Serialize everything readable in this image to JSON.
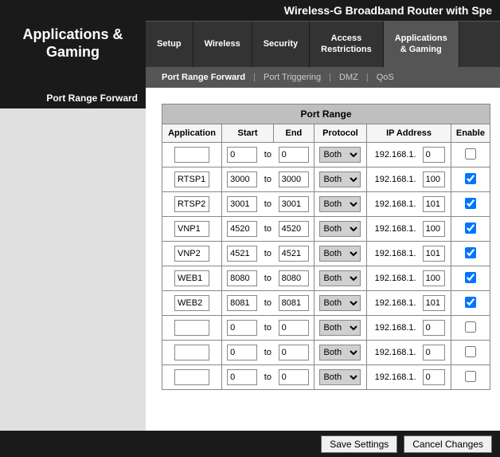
{
  "brand_section": "Applications & Gaming",
  "product_title": "Wireless-G Broadband Router with Spe",
  "main_tabs": [
    {
      "label": "Setup",
      "active": false
    },
    {
      "label": "Wireless",
      "active": false
    },
    {
      "label": "Security",
      "active": false
    },
    {
      "label": "Access Restrictions",
      "active": false
    },
    {
      "label": "Applications & Gaming",
      "active": true
    }
  ],
  "sub_tabs": [
    {
      "label": "Port Range Forward",
      "active": true
    },
    {
      "label": "Port Triggering",
      "active": false
    },
    {
      "label": "DMZ",
      "active": false
    },
    {
      "label": "QoS",
      "active": false
    }
  ],
  "sidebar_title": "Port Range Forward",
  "table": {
    "section_title": "Port Range",
    "columns": [
      "Application",
      "Start",
      "End",
      "Protocol",
      "IP Address",
      "Enable"
    ],
    "to_label": "to",
    "ip_prefix": "192.168.1.",
    "protocol_default": "Both",
    "rows": [
      {
        "app": "",
        "start": "0",
        "end": "0",
        "protocol": "Both",
        "ip_last": "0",
        "enabled": false
      },
      {
        "app": "RTSP1",
        "start": "3000",
        "end": "3000",
        "protocol": "Both",
        "ip_last": "100",
        "enabled": true
      },
      {
        "app": "RTSP2",
        "start": "3001",
        "end": "3001",
        "protocol": "Both",
        "ip_last": "101",
        "enabled": true
      },
      {
        "app": "VNP1",
        "start": "4520",
        "end": "4520",
        "protocol": "Both",
        "ip_last": "100",
        "enabled": true
      },
      {
        "app": "VNP2",
        "start": "4521",
        "end": "4521",
        "protocol": "Both",
        "ip_last": "101",
        "enabled": true
      },
      {
        "app": "WEB1",
        "start": "8080",
        "end": "8080",
        "protocol": "Both",
        "ip_last": "100",
        "enabled": true
      },
      {
        "app": "WEB2",
        "start": "8081",
        "end": "8081",
        "protocol": "Both",
        "ip_last": "101",
        "enabled": true
      },
      {
        "app": "",
        "start": "0",
        "end": "0",
        "protocol": "Both",
        "ip_last": "0",
        "enabled": false
      },
      {
        "app": "",
        "start": "0",
        "end": "0",
        "protocol": "Both",
        "ip_last": "0",
        "enabled": false
      },
      {
        "app": "",
        "start": "0",
        "end": "0",
        "protocol": "Both",
        "ip_last": "0",
        "enabled": false
      }
    ]
  },
  "buttons": {
    "save": "Save Settings",
    "cancel": "Cancel Changes"
  },
  "colors": {
    "header_bg": "#1a1a1a",
    "tab_bg": "#333333",
    "tab_active_bg": "#555555",
    "sidebar_bg": "#e0e0e0",
    "section_header_bg": "#bfbfbf"
  }
}
